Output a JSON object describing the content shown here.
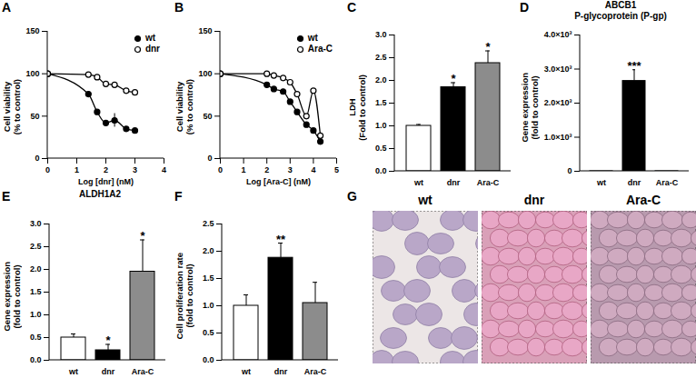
{
  "chart_data": [
    {
      "panel": "A",
      "type": "line",
      "x_label": "Log [dnr] (nM)",
      "y_label": "Cell viability\n(% to control)",
      "xlim": [
        0,
        4
      ],
      "xticks": [
        0,
        1,
        2,
        3,
        4
      ],
      "ylim": [
        0,
        150
      ],
      "yticks": [
        0,
        50,
        100,
        150
      ],
      "legend": "top-right",
      "series": [
        {
          "name": "wt",
          "color": "#000000",
          "marker": "filled_circle",
          "x": [
            0,
            1.4,
            1.7,
            2,
            2.3,
            2.7,
            3
          ],
          "values": [
            100,
            76,
            55,
            42,
            45,
            35,
            33
          ],
          "errors": [
            null,
            null,
            null,
            null,
            8,
            null,
            null
          ]
        },
        {
          "name": "dnr",
          "color": "#000000",
          "marker": "open_circle",
          "x": [
            0,
            1.4,
            1.7,
            2,
            2.3,
            2.7,
            3
          ],
          "values": [
            100,
            99,
            96,
            88,
            87,
            80,
            78
          ],
          "errors": [
            null,
            null,
            null,
            null,
            null,
            null,
            null
          ]
        }
      ]
    },
    {
      "panel": "B",
      "type": "line",
      "x_label": "Log [Ara-C] (nM)",
      "y_label": "Cell viability\n(% to control)",
      "xlim": [
        0,
        5
      ],
      "xticks": [
        0,
        1,
        2,
        3,
        4,
        5
      ],
      "ylim": [
        0,
        150
      ],
      "yticks": [
        0,
        50,
        100,
        150
      ],
      "legend": "top-right",
      "series": [
        {
          "name": "wt",
          "color": "#000000",
          "marker": "filled_circle",
          "x": [
            0,
            2,
            2.3,
            2.7,
            3,
            3.3,
            3.7,
            4,
            4.3
          ],
          "values": [
            100,
            87,
            82,
            79,
            67,
            55,
            40,
            33,
            20
          ],
          "errors": [
            null,
            null,
            null,
            null,
            null,
            null,
            null,
            null,
            null
          ]
        },
        {
          "name": "Ara-C",
          "color": "#000000",
          "marker": "open_circle",
          "x": [
            0,
            2,
            2.3,
            2.7,
            3,
            3.3,
            3.7,
            4,
            4.3
          ],
          "values": [
            100,
            100,
            98,
            95,
            90,
            76,
            50,
            80,
            27
          ],
          "errors": [
            null,
            null,
            null,
            null,
            null,
            null,
            null,
            null,
            null
          ]
        }
      ]
    },
    {
      "panel": "C",
      "type": "bar",
      "y_label": "LDH\n(Fold to control)",
      "categories": [
        "wt",
        "dnr",
        "Ara-C"
      ],
      "values": [
        1.0,
        1.85,
        2.38
      ],
      "errors": [
        0.03,
        0.1,
        0.27
      ],
      "colors": [
        "#ffffff",
        "#000000",
        "#8c8c8c"
      ],
      "ylim": [
        0,
        3
      ],
      "yticks": [
        {
          "value": 0,
          "label": "0.0"
        },
        0.5,
        {
          "value": 1,
          "label": "1.0"
        },
        1.5,
        {
          "value": 2,
          "label": "2.0"
        },
        2.5,
        {
          "value": 3,
          "label": "3.0"
        }
      ],
      "annotations": [
        {
          "category": "dnr",
          "text": "*"
        },
        {
          "category": "Ara-C",
          "text": "*"
        }
      ]
    },
    {
      "panel": "D",
      "type": "bar",
      "title": "ABCB1\nP-glycoprotein (P-gp)",
      "y_label": "Gene expression\n(fold to control)",
      "categories": [
        "wt",
        "dnr",
        "Ara-C"
      ],
      "values": [
        1,
        2650,
        1
      ],
      "errors": [
        null,
        330,
        null
      ],
      "colors": [
        "#ffffff",
        "#000000",
        "#8c8c8c"
      ],
      "ylim": [
        0,
        4000
      ],
      "yticks": [
        0,
        {
          "value": 1000,
          "label": "1.0×10³"
        },
        {
          "value": 2000,
          "label": "2.0×10³"
        },
        {
          "value": 3000,
          "label": "3.0×10³"
        },
        {
          "value": 4000,
          "label": "4.0×10³"
        }
      ],
      "annotations": [
        {
          "category": "dnr",
          "text": "***"
        }
      ]
    },
    {
      "panel": "E",
      "type": "bar",
      "title": "ALDH1A2",
      "y_label": "Gene expression\n(fold to control)",
      "categories": [
        "wt",
        "dnr",
        "Ara-C"
      ],
      "values": [
        0.5,
        0.22,
        1.95
      ],
      "errors": [
        0.08,
        0.13,
        0.7
      ],
      "colors": [
        "#ffffff",
        "#000000",
        "#8c8c8c"
      ],
      "ylim": [
        0,
        3
      ],
      "yticks": [
        {
          "value": 0,
          "label": "0.0"
        },
        0.5,
        {
          "value": 1,
          "label": "1.0"
        },
        1.5,
        {
          "value": 2,
          "label": "2.0"
        },
        2.5,
        {
          "value": 3,
          "label": "3.0"
        }
      ],
      "annotations": [
        {
          "category": "dnr",
          "text": "*"
        },
        {
          "category": "Ara-C",
          "text": "*"
        }
      ]
    },
    {
      "panel": "F",
      "type": "bar",
      "y_label": "Cell proliferation rate\n(fold to control)",
      "categories": [
        "wt",
        "dnr",
        "Ara-C"
      ],
      "values": [
        1.0,
        1.88,
        1.05
      ],
      "errors": [
        0.2,
        0.27,
        0.38
      ],
      "colors": [
        "#ffffff",
        "#000000",
        "#8c8c8c"
      ],
      "ylim": [
        0,
        2.5
      ],
      "yticks": [
        {
          "value": 0,
          "label": "0.0"
        },
        0.5,
        {
          "value": 1,
          "label": "1.0"
        },
        1.5,
        {
          "value": 2,
          "label": "2.0"
        },
        2.5
      ],
      "annotations": [
        {
          "category": "dnr",
          "text": "**"
        }
      ]
    }
  ],
  "micrographs": {
    "panel": "G",
    "labels": [
      "wt",
      "dnr",
      "Ara-C"
    ]
  }
}
